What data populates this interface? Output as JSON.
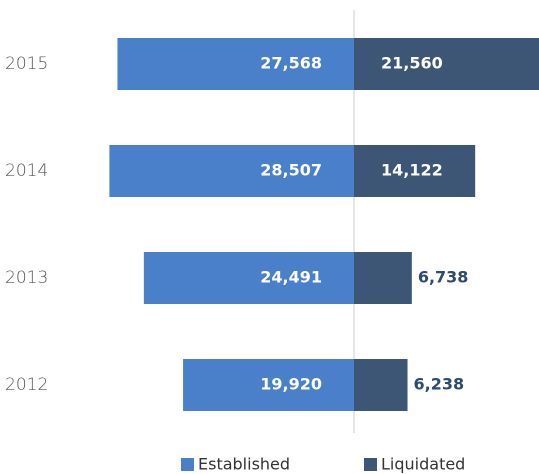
{
  "chart_data": {
    "type": "diverging-bar",
    "categories": [
      "2015",
      "2014",
      "2013",
      "2012"
    ],
    "series": [
      {
        "name": "Established",
        "color": "#4a7fc9",
        "values": [
          27568,
          28507,
          24491,
          19920
        ],
        "value_labels": [
          "27,568",
          "28,507",
          "24,491",
          "19,920"
        ]
      },
      {
        "name": "Liquidated",
        "color": "#3d5675",
        "values": [
          21560,
          14122,
          6738,
          6238
        ],
        "value_labels": [
          "21,560",
          "14,122",
          "6,738",
          "6,238"
        ]
      }
    ]
  }
}
